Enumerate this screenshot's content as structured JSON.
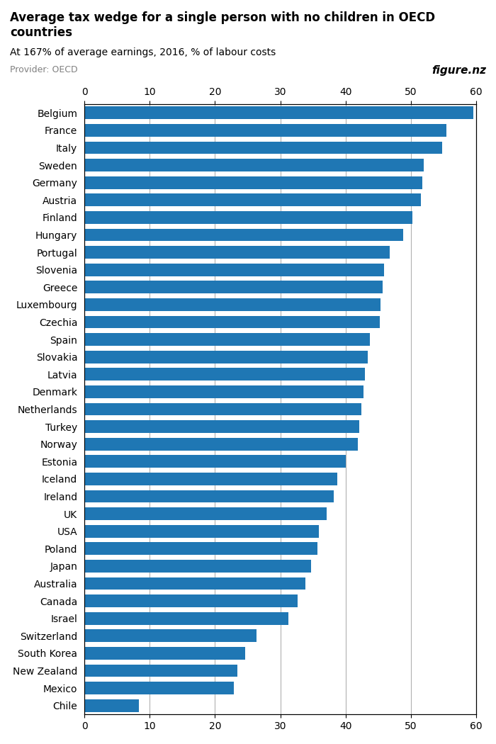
{
  "chart_data": {
    "type": "bar",
    "orientation": "horizontal",
    "title": "Average tax wedge for a single person with no children in OECD\ncountries",
    "subtitle": "At 167% of average earnings, 2016, % of labour costs",
    "annotations": [
      "Provider: OECD",
      "figure.nz"
    ],
    "categories": [
      "Belgium",
      "France",
      "Italy",
      "Sweden",
      "Germany",
      "Austria",
      "Finland",
      "Hungary",
      "Portugal",
      "Slovenia",
      "Greece",
      "Luxembourg",
      "Czechia",
      "Spain",
      "Slovakia",
      "Latvia",
      "Denmark",
      "Netherlands",
      "Turkey",
      "Norway",
      "Estonia",
      "Iceland",
      "Ireland",
      "UK",
      "USA",
      "Poland",
      "Japan",
      "Australia",
      "Canada",
      "Israel",
      "Switzerland",
      "South Korea",
      "New Zealand",
      "Mexico",
      "Chile"
    ],
    "values": [
      59.6,
      55.4,
      54.8,
      52.0,
      51.8,
      51.5,
      50.2,
      48.8,
      46.8,
      45.9,
      45.7,
      45.4,
      45.2,
      43.7,
      43.4,
      43.0,
      42.7,
      42.4,
      42.1,
      41.9,
      40.0,
      38.7,
      38.2,
      37.1,
      35.9,
      35.7,
      34.7,
      33.9,
      32.7,
      31.3,
      26.4,
      24.6,
      23.4,
      22.9,
      8.4
    ],
    "xlim": [
      0,
      60
    ],
    "xticks": [
      0,
      10,
      20,
      30,
      40,
      50,
      60
    ],
    "grid": true
  }
}
